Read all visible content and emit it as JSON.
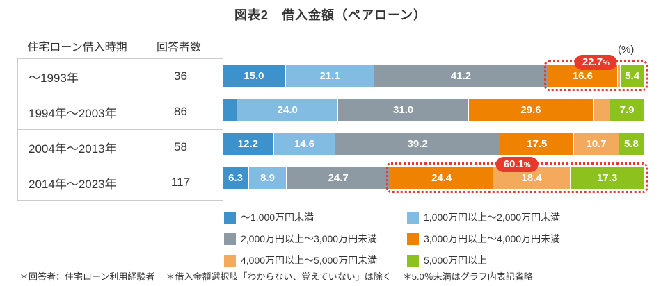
{
  "title": "図表2　借入金額（ペアローン）",
  "unit_label": "(%)",
  "table": {
    "headers": [
      "住宅ローン借入時期",
      "回答者数"
    ],
    "rows": [
      {
        "period": "～1993年",
        "respondents": "36"
      },
      {
        "period": "1994年～2003年",
        "respondents": "86"
      },
      {
        "period": "2004年～2013年",
        "respondents": "58"
      },
      {
        "period": "2014年～2023年",
        "respondents": "117"
      }
    ]
  },
  "chart_data": {
    "type": "bar",
    "orientation": "horizontal-stacked",
    "unit": "%",
    "xlim": [
      0,
      100
    ],
    "categories": [
      "～1993年",
      "1994年～2003年",
      "2004年～2013年",
      "2014年～2023年"
    ],
    "series": [
      {
        "name": "～1,000万円未満",
        "color": "#3d92cc",
        "values": [
          15.0,
          3.5,
          12.2,
          6.3
        ],
        "labels": [
          "15.0",
          "",
          "12.2",
          "6.3"
        ]
      },
      {
        "name": "1,000万円以上～2,000万円未満",
        "color": "#82bce2",
        "values": [
          21.1,
          24.0,
          14.6,
          8.9
        ],
        "labels": [
          "21.1",
          "24.0",
          "14.6",
          "8.9"
        ]
      },
      {
        "name": "2,000万円以上～3,000万円未満",
        "color": "#8d99a3",
        "values": [
          41.2,
          31.0,
          39.2,
          24.7
        ],
        "labels": [
          "41.2",
          "31.0",
          "39.2",
          "24.7"
        ]
      },
      {
        "name": "3,000万円以上～4,000万円未満",
        "color": "#ef8200",
        "values": [
          16.6,
          29.6,
          17.5,
          24.4
        ],
        "labels": [
          "16.6",
          "29.6",
          "17.5",
          "24.4"
        ]
      },
      {
        "name": "4,000万円以上～5,000万円未満",
        "color": "#f4aa5d",
        "values": [
          0.7,
          4.0,
          10.7,
          18.4
        ],
        "labels": [
          "",
          "",
          "10.7",
          "18.4"
        ]
      },
      {
        "name": "5,000万円以上",
        "color": "#8dc21e",
        "values": [
          5.4,
          7.9,
          5.8,
          17.3
        ],
        "labels": [
          "5.4",
          "7.9",
          "5.8",
          "17.3"
        ]
      }
    ],
    "annotations": [
      {
        "row": 0,
        "from_series": 3,
        "value": "22.7",
        "suffix": "%"
      },
      {
        "row": 3,
        "from_series": 3,
        "value": "60.1",
        "suffix": "%"
      }
    ],
    "annotation_color": "#e8392d",
    "label_omit_threshold": "5.0%未満はグラフ内表記省略"
  },
  "footnotes": [
    "＊回答者：住宅ローン利用経験者",
    "＊借入金額選択肢「わからない、覚えていない」は除く",
    "＊5.0％未満はグラフ内表記省略"
  ]
}
